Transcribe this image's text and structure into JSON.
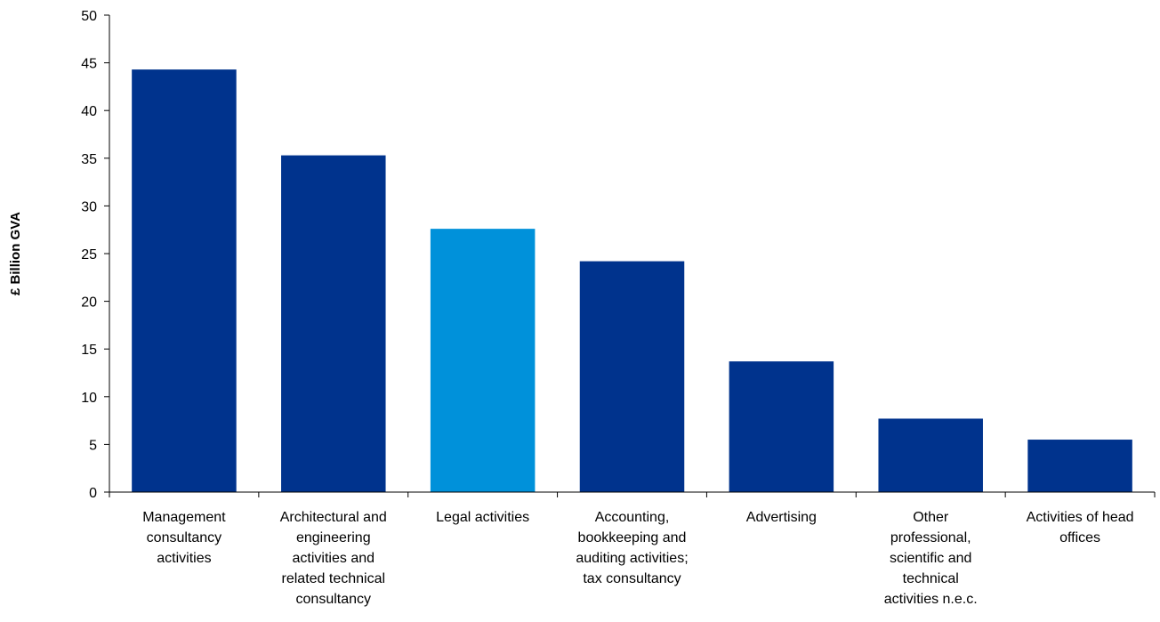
{
  "chart_data": {
    "type": "bar",
    "title": "",
    "xlabel": "",
    "ylabel": "£ Billion GVA",
    "ylim": [
      0,
      50
    ],
    "yticks": [
      0,
      5,
      10,
      15,
      20,
      25,
      30,
      35,
      40,
      45,
      50
    ],
    "grid": false,
    "legend": "none",
    "categories": [
      [
        "Management",
        "consultancy",
        "activities"
      ],
      [
        "Architectural and",
        "engineering",
        "activities and",
        "related technical",
        "consultancy"
      ],
      [
        "Legal activities"
      ],
      [
        "Accounting,",
        "bookkeeping and",
        "auditing activities;",
        "tax consultancy"
      ],
      [
        "Advertising"
      ],
      [
        "Other",
        "professional,",
        "scientific and",
        "technical",
        "activities n.e.c."
      ],
      [
        "Activities of head",
        "offices"
      ]
    ],
    "values": [
      44.3,
      35.3,
      27.6,
      24.2,
      13.7,
      7.7,
      5.5
    ],
    "colors": [
      "#00338D",
      "#00338D",
      "#0091DA",
      "#00338D",
      "#00338D",
      "#00338D",
      "#00338D"
    ]
  }
}
